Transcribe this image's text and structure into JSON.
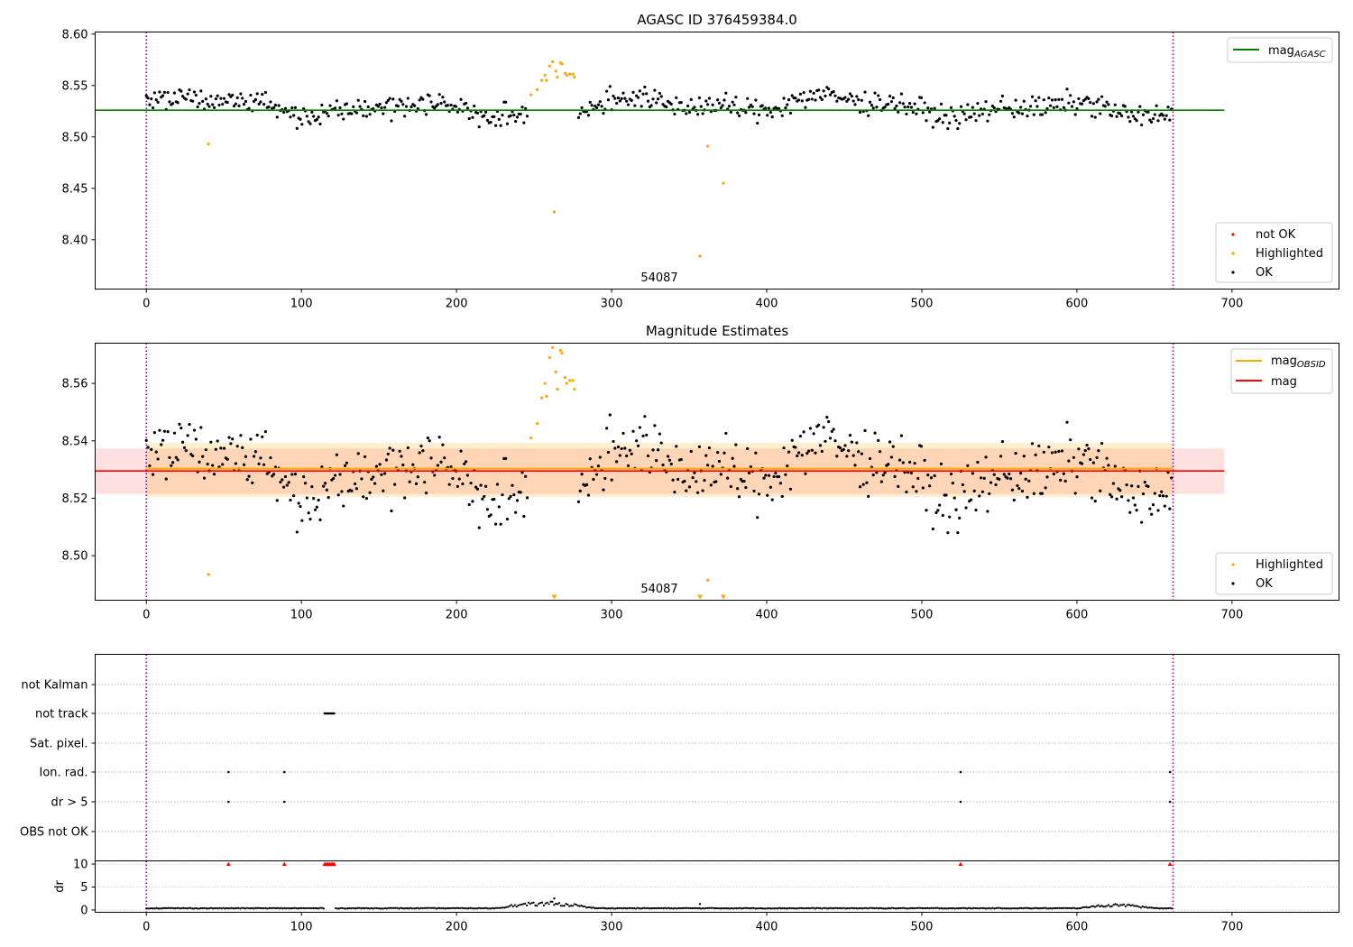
{
  "chart_data": [
    {
      "type": "scatter",
      "title": "AGASC ID 376459384.0",
      "xlim": [
        -33,
        769
      ],
      "ylim": [
        8.352,
        8.602
      ],
      "xticks": [
        "0",
        "100",
        "200",
        "300",
        "400",
        "500",
        "600",
        "700"
      ],
      "yticks": [
        "8.40",
        "8.45",
        "8.50",
        "8.55",
        "8.60"
      ],
      "obsid_label": "54087",
      "obsid_bounds": [
        0,
        662
      ],
      "hline": {
        "name": "mag_AGASC",
        "value": 8.526,
        "x_range": [
          -33,
          695
        ],
        "color": "#008000"
      },
      "legend_lines": [
        {
          "label": "mag",
          "sub": "AGASC",
          "color": "#008000"
        }
      ],
      "legend_points": [
        {
          "label": "not OK",
          "color": "#ff0000"
        },
        {
          "label": "Highlighted",
          "color": "#ffa500"
        },
        {
          "label": "OK",
          "color": "#000000"
        }
      ],
      "highlighted": [
        {
          "x": 40,
          "y": 8.493
        },
        {
          "x": 248,
          "y": 8.541
        },
        {
          "x": 252,
          "y": 8.546
        },
        {
          "x": 255,
          "y": 8.555
        },
        {
          "x": 257,
          "y": 8.56
        },
        {
          "x": 258,
          "y": 8.555
        },
        {
          "x": 260,
          "y": 8.569
        },
        {
          "x": 262,
          "y": 8.573
        },
        {
          "x": 263,
          "y": 8.427
        },
        {
          "x": 264,
          "y": 8.564
        },
        {
          "x": 265,
          "y": 8.558
        },
        {
          "x": 267,
          "y": 8.572
        },
        {
          "x": 268,
          "y": 8.571
        },
        {
          "x": 270,
          "y": 8.562
        },
        {
          "x": 271,
          "y": 8.56
        },
        {
          "x": 273,
          "y": 8.561
        },
        {
          "x": 275,
          "y": 8.561
        },
        {
          "x": 276,
          "y": 8.558
        },
        {
          "x": 357,
          "y": 8.384
        },
        {
          "x": 362,
          "y": 8.491
        },
        {
          "x": 372,
          "y": 8.455
        }
      ],
      "ok_summary": {
        "count": 620,
        "center": 8.529,
        "typical_range": [
          8.508,
          8.55
        ]
      }
    },
    {
      "type": "scatter",
      "title": "Magnitude Estimates",
      "xlim": [
        -33,
        769
      ],
      "ylim": [
        8.4845,
        8.574
      ],
      "xticks": [
        "0",
        "100",
        "200",
        "300",
        "400",
        "500",
        "600",
        "700"
      ],
      "yticks": [
        "8.50",
        "8.52",
        "8.54",
        "8.56"
      ],
      "obsid_label": "54087",
      "obsid_bounds": [
        0,
        662
      ],
      "mag": {
        "value": 8.5295,
        "band": [
          8.5215,
          8.5373
        ],
        "x_range": [
          -33,
          695
        ],
        "color": "#ff0000"
      },
      "mag_obsid": {
        "value": 8.5303,
        "band": [
          8.5205,
          8.5393
        ],
        "x_range": [
          0,
          662
        ],
        "color": "#ffa500"
      },
      "legend_lines": [
        {
          "label": "mag",
          "sub": "OBSID",
          "color": "#ffa500"
        },
        {
          "label": "mag",
          "sub": "",
          "color": "#ff0000"
        }
      ],
      "legend_points": [
        {
          "label": "Highlighted",
          "color": "#ffa500"
        },
        {
          "label": "OK",
          "color": "#000000"
        }
      ],
      "out_of_range_markers_x": [
        263,
        357,
        372
      ],
      "highlighted": [
        {
          "x": 40,
          "y": 8.4935
        },
        {
          "x": 248,
          "y": 8.541
        },
        {
          "x": 252,
          "y": 8.546
        },
        {
          "x": 255,
          "y": 8.555
        },
        {
          "x": 257,
          "y": 8.56
        },
        {
          "x": 258,
          "y": 8.5555
        },
        {
          "x": 260,
          "y": 8.569
        },
        {
          "x": 262,
          "y": 8.5725
        },
        {
          "x": 264,
          "y": 8.564
        },
        {
          "x": 265,
          "y": 8.558
        },
        {
          "x": 267,
          "y": 8.5715
        },
        {
          "x": 268,
          "y": 8.5705
        },
        {
          "x": 270,
          "y": 8.562
        },
        {
          "x": 271,
          "y": 8.56
        },
        {
          "x": 273,
          "y": 8.561
        },
        {
          "x": 275,
          "y": 8.561
        },
        {
          "x": 276,
          "y": 8.558
        },
        {
          "x": 362,
          "y": 8.4915
        }
      ],
      "ok_summary": {
        "count": 620,
        "center": 8.529,
        "typical_range": [
          8.508,
          8.55
        ]
      }
    },
    {
      "type": "scatter",
      "title": "",
      "xlim": [
        -33,
        769
      ],
      "xticks": [
        "0",
        "100",
        "200",
        "300",
        "400",
        "500",
        "600",
        "700"
      ],
      "obsid_bounds": [
        0,
        662
      ],
      "flag_rows": [
        "not Kalman",
        "not track",
        "Sat. pixel.",
        "Ion. rad.",
        "dr > 5",
        "OBS not OK"
      ],
      "flags": {
        "not track": [
          115,
          116,
          117,
          118,
          119,
          120,
          121
        ],
        "Ion. rad.": [
          53,
          89,
          525,
          660
        ],
        "dr > 5": [
          53,
          89,
          525,
          660
        ]
      },
      "dr": {
        "ylabel": "dr",
        "yticks": [
          "0",
          "5",
          "10"
        ],
        "ylim": [
          -0.5,
          10.7
        ],
        "clip_value": 10,
        "clipped_x": [
          53,
          89,
          115,
          116,
          117,
          118,
          119,
          120,
          121,
          525,
          660
        ],
        "isolated_points": [
          {
            "x": 263,
            "y": 2.5
          },
          {
            "x": 357,
            "y": 1.3
          }
        ],
        "bump_ranges": [
          {
            "from": 225,
            "to": 290,
            "peak": 1.4
          },
          {
            "from": 600,
            "to": 650,
            "peak": 0.9
          }
        ],
        "baseline": 0.3
      }
    }
  ]
}
